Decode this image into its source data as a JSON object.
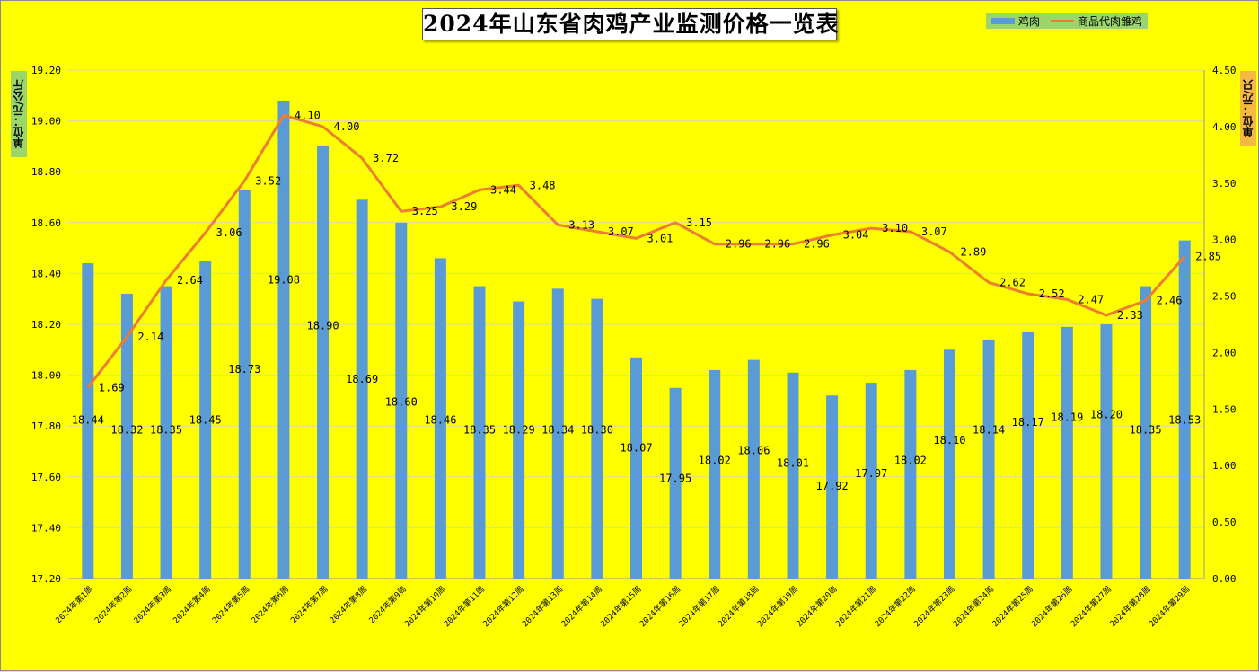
{
  "title": "2024年山东省肉鸡产业监测价格一览表",
  "legend": {
    "bar_label": "鸡肉",
    "line_label": "商品代肉雏鸡"
  },
  "units": {
    "left": "单位：元/公斤",
    "right": "单位：元/只"
  },
  "colors": {
    "background": "#ffff00",
    "bar": "#5b9bd5",
    "line": "#ed7d31",
    "legend_bg": "#9bd66a",
    "unit_right_bg": "#f4b942"
  },
  "chart_data": {
    "type": "bar+line",
    "categories": [
      "2024年第1周",
      "2024年第2周",
      "2024年第3周",
      "2024年第4周",
      "2024年第5周",
      "2024年第6周",
      "2024年第7周",
      "2024年第8周",
      "2024年第9周",
      "2024年第10周",
      "2024年第11周",
      "2024年第12周",
      "2024年第13周",
      "2024年第14周",
      "2024年第15周",
      "2024年第16周",
      "2024年第17周",
      "2024年第18周",
      "2024年第19周",
      "2024年第20周",
      "2024年第21周",
      "2024年第22周",
      "2024年第23周",
      "2024年第24周",
      "2024年第25周",
      "2024年第26周",
      "2024年第27周",
      "2024年第28周",
      "2024年第29周"
    ],
    "series": [
      {
        "name": "鸡肉",
        "type": "bar",
        "axis": "left",
        "values": [
          18.44,
          18.32,
          18.35,
          18.45,
          18.73,
          19.08,
          18.9,
          18.69,
          18.6,
          18.46,
          18.35,
          18.29,
          18.34,
          18.3,
          18.07,
          17.95,
          18.02,
          18.06,
          18.01,
          17.92,
          17.97,
          18.02,
          18.1,
          18.14,
          18.17,
          18.19,
          18.2,
          18.35,
          18.53
        ]
      },
      {
        "name": "商品代肉雏鸡",
        "type": "line",
        "axis": "right",
        "values": [
          1.69,
          2.14,
          2.64,
          3.06,
          3.52,
          4.1,
          4.0,
          3.72,
          3.25,
          3.29,
          3.44,
          3.48,
          3.13,
          3.07,
          3.01,
          3.15,
          2.96,
          2.96,
          2.96,
          3.04,
          3.1,
          3.07,
          2.89,
          2.62,
          2.52,
          2.47,
          2.33,
          2.46,
          2.85
        ]
      }
    ],
    "y_left": {
      "min": 17.2,
      "max": 19.2,
      "step": 0.2,
      "ticks": [
        "17.20",
        "17.40",
        "17.60",
        "17.80",
        "18.00",
        "18.20",
        "18.40",
        "18.60",
        "18.80",
        "19.00",
        "19.20"
      ]
    },
    "y_right": {
      "min": 0,
      "max": 4.5,
      "step": 0.5,
      "ticks": [
        "0.00",
        "0.50",
        "1.00",
        "1.50",
        "2.00",
        "2.50",
        "3.00",
        "3.50",
        "4.00",
        "4.50"
      ]
    },
    "grid": true,
    "legend_position": "top-right"
  }
}
